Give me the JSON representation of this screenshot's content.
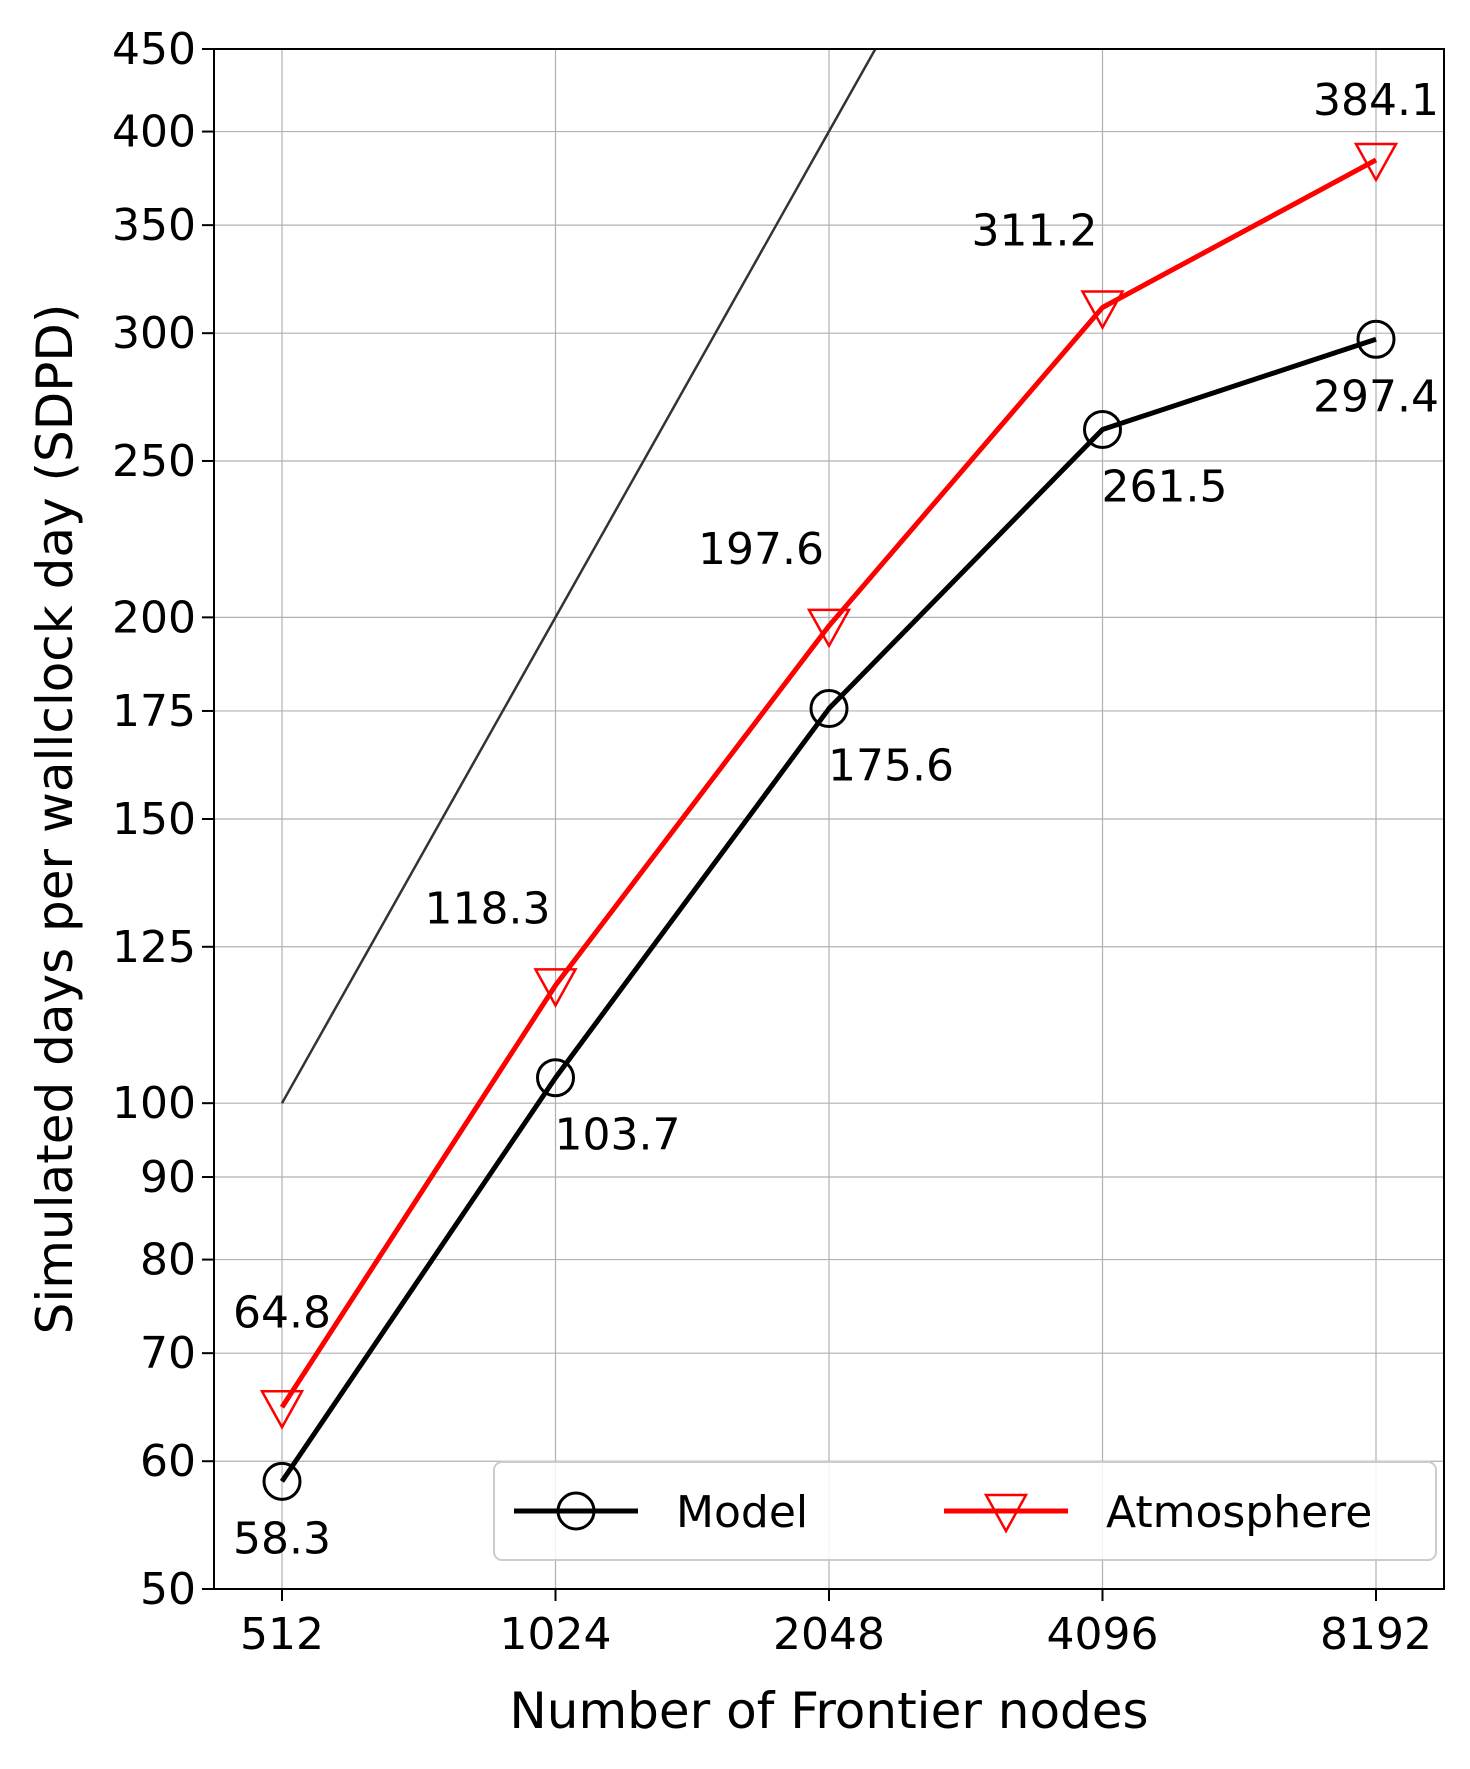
{
  "chart_data": {
    "type": "line",
    "xlabel": "Number of Frontier nodes",
    "ylabel": "Simulated days per wallclock day (SDPD)",
    "x": [
      512,
      1024,
      2048,
      4096,
      8192
    ],
    "x_scale": "log2",
    "y_scale": "log",
    "ylim": [
      50,
      450
    ],
    "yticks": [
      50,
      60,
      70,
      80,
      90,
      100,
      125,
      150,
      175,
      200,
      250,
      300,
      350,
      400,
      450
    ],
    "grid": true,
    "legend_position": "lower-right",
    "series": [
      {
        "name": "Model",
        "values": [
          58.3,
          103.7,
          175.6,
          261.5,
          297.4
        ],
        "labels": [
          "58.3",
          "103.7",
          "175.6",
          "261.5",
          "297.4"
        ],
        "color": "#000000",
        "marker": "circle"
      },
      {
        "name": "Atmosphere",
        "values": [
          64.8,
          118.3,
          197.6,
          311.2,
          384.1
        ],
        "labels": [
          "64.8",
          "118.3",
          "197.6",
          "311.2",
          "384.1"
        ],
        "color": "#ff0000",
        "marker": "triangle-down"
      }
    ],
    "reference_line": {
      "x": [
        512,
        2380
      ],
      "y": [
        100,
        465
      ],
      "color": "#333333"
    }
  }
}
